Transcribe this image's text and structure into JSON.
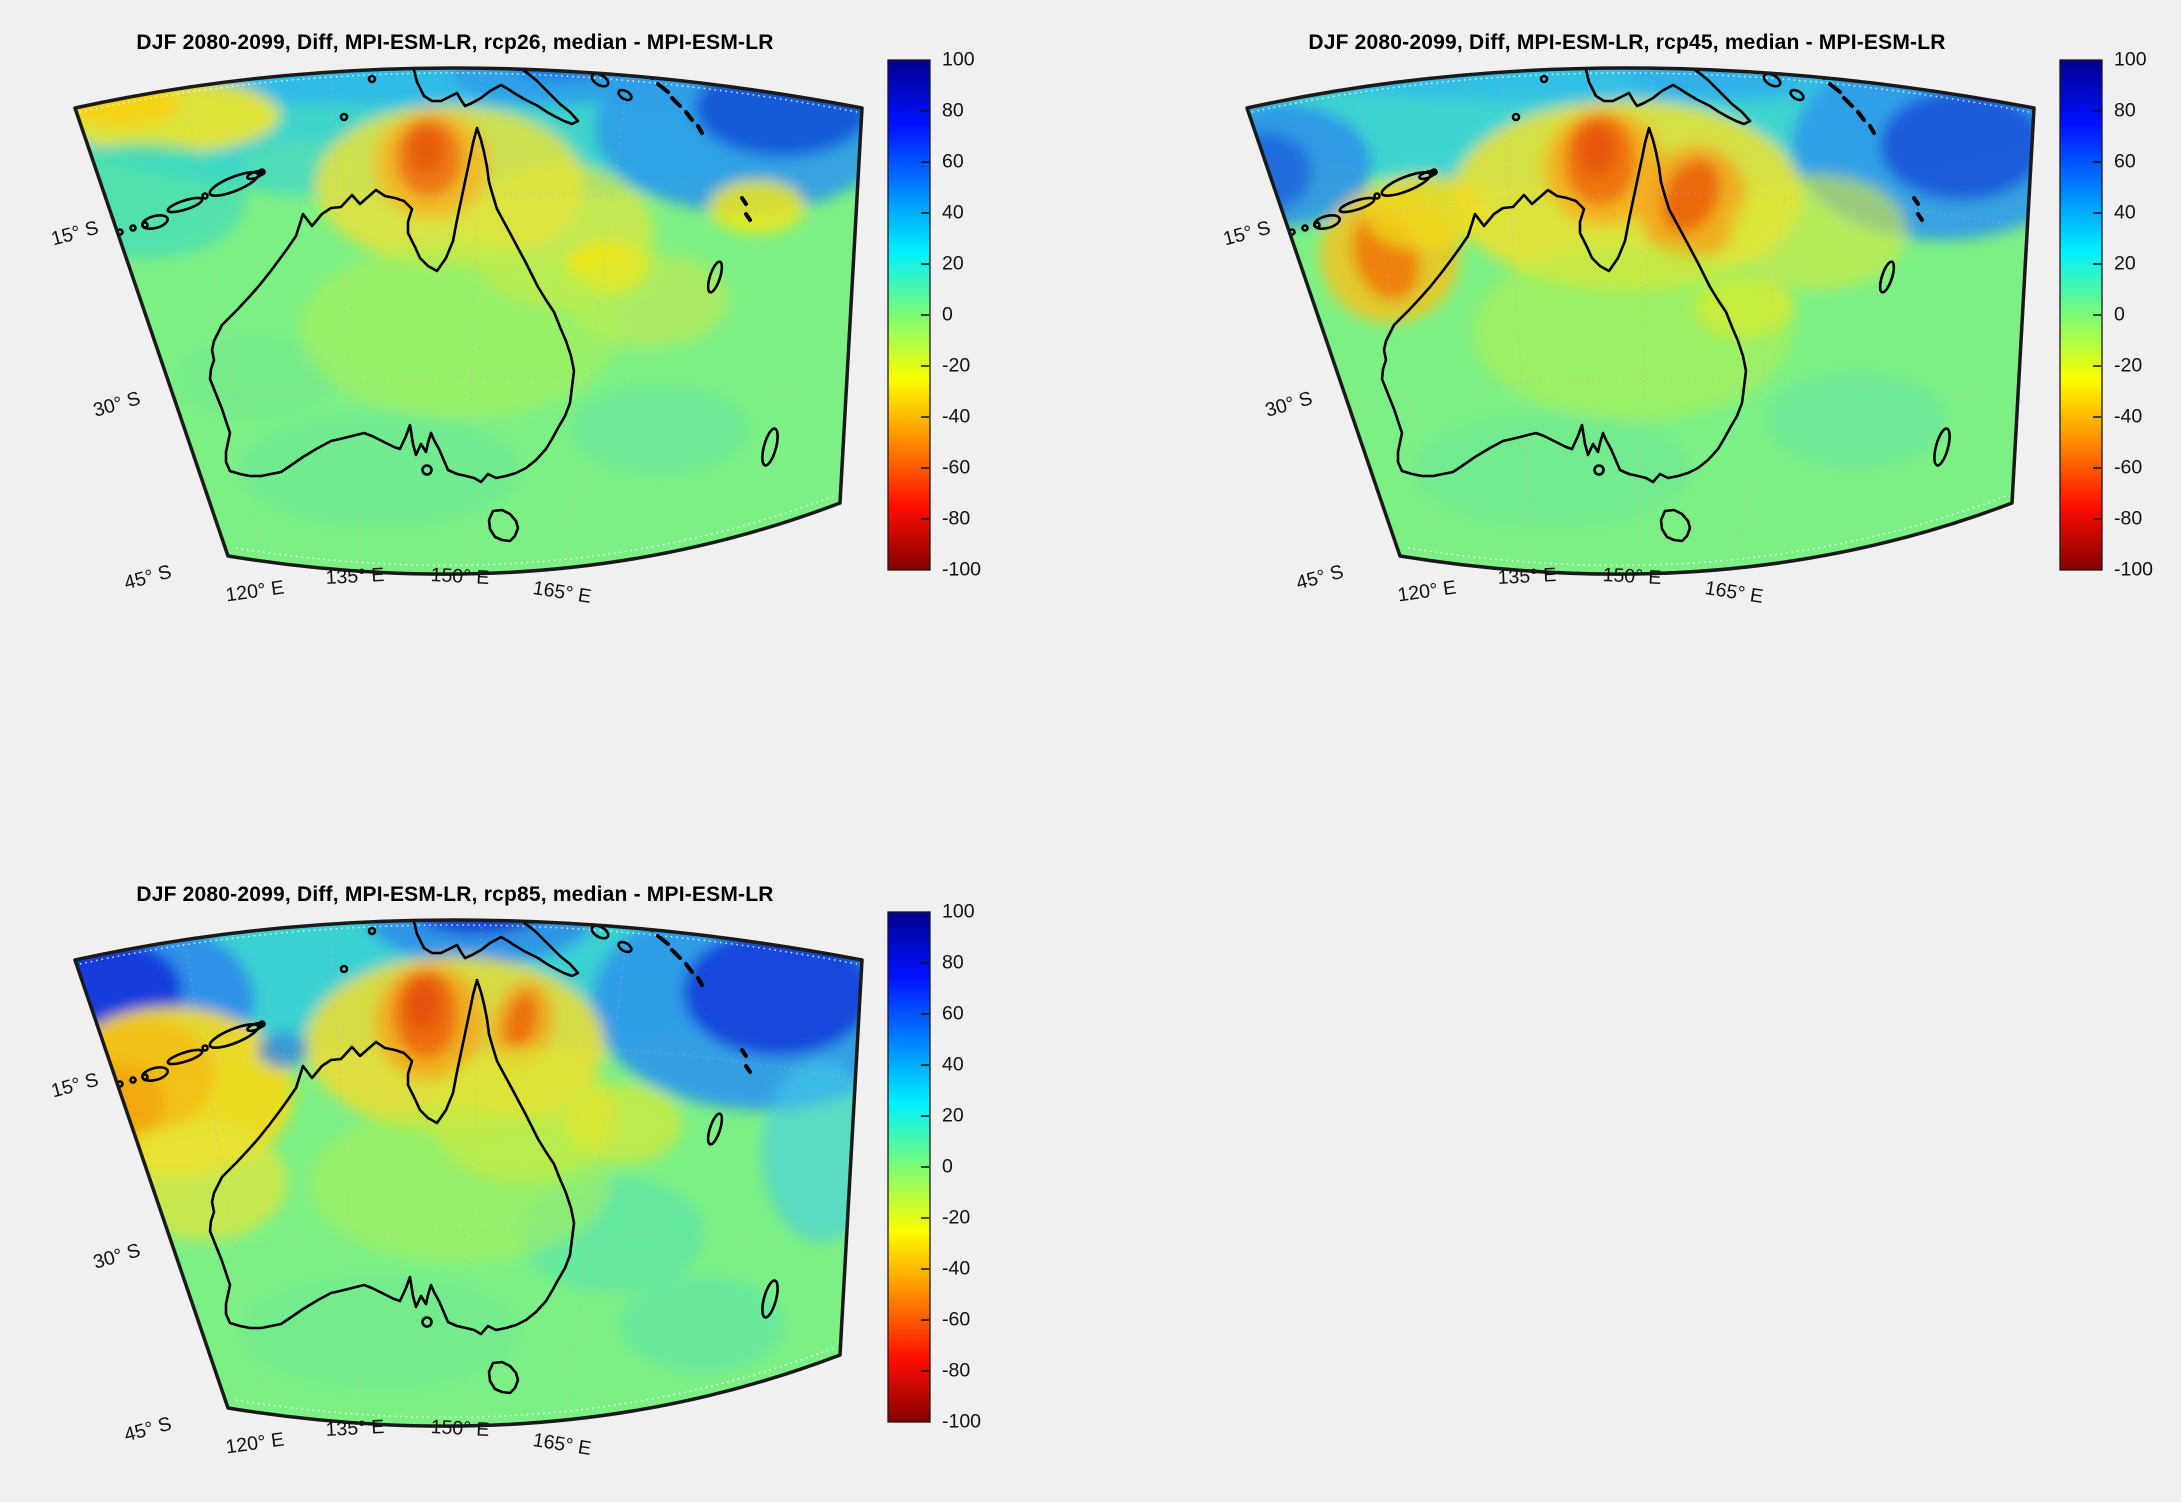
{
  "figure": {
    "background": "#F0F0F0",
    "kind": "MATLAB-style multi-panel climate map figure"
  },
  "chart_data": {
    "type": "heatmap",
    "description": "Three filled-contour map panels over the Australia region showing DJF 2080-2099 median difference fields for MPI-ESM-LR under rcp26, rcp45 and rcp85, each with a vertical jet colorbar from -100 to 100. Positive (blue) band across the tropics at top, negative (yellow/orange) anomalies over northern Australia.",
    "lat_ticks": [
      "15° S",
      "30° S",
      "45° S"
    ],
    "lon_ticks": [
      "120° E",
      "135° E",
      "150° E",
      "165° E"
    ],
    "colorbar": {
      "ticks": [
        "100",
        "80",
        "60",
        "40",
        "20",
        "0",
        "-20",
        "-40",
        "-60",
        "-80",
        "-100"
      ],
      "max": 100,
      "min": -100,
      "colormap": "jet reversed (+100 dark blue at top, 0 green, -100 dark red at bottom)",
      "stops": [
        [
          0,
          "#00008F"
        ],
        [
          0.125,
          "#0010FF"
        ],
        [
          0.25,
          "#0080FF"
        ],
        [
          0.375,
          "#00F0FF"
        ],
        [
          0.5,
          "#7CFC74"
        ],
        [
          0.625,
          "#FBFF00"
        ],
        [
          0.75,
          "#FF8A00"
        ],
        [
          0.875,
          "#FF0E00"
        ],
        [
          1,
          "#840000"
        ]
      ]
    },
    "features_format": "[cx, cy, rx, ry, color, opacity, rotationDeg(optional)] in panel pixel coords; color encodes field value per colorbar",
    "panels": [
      {
        "scenario": "rcp26",
        "title": "DJF 2080-2099, Diff, MPI-ESM-LR, rcp26, median - MPI-ESM-LR",
        "base_color": "#7DF085",
        "features": [
          [
            460,
            108,
            430,
            92,
            "#38D3CF",
            0.95
          ],
          [
            460,
            66,
            450,
            40,
            "#2FB9E9",
            0.9
          ],
          [
            745,
            128,
            150,
            85,
            "#2F9BE8",
            0.9
          ],
          [
            783,
            108,
            88,
            48,
            "#1256D8",
            0.95
          ],
          [
            545,
            70,
            95,
            36,
            "#2F9BE8",
            0.8
          ],
          [
            560,
            58,
            55,
            20,
            "#1B62DC",
            0.8
          ],
          [
            165,
            115,
            115,
            38,
            "#EDE42A",
            0.9
          ],
          [
            122,
            103,
            58,
            24,
            "#F6D214",
            0.9
          ],
          [
            145,
            200,
            100,
            58,
            "#3FDCBC",
            0.7
          ],
          [
            300,
            170,
            60,
            30,
            "#5FE3A8",
            0.5
          ],
          [
            450,
            185,
            135,
            80,
            "#E6E23B",
            0.85
          ],
          [
            432,
            165,
            58,
            54,
            "#F4B822",
            0.85
          ],
          [
            429,
            158,
            34,
            40,
            "#EE7511",
            0.95
          ],
          [
            426,
            150,
            18,
            24,
            "#E55A0B",
            0.95
          ],
          [
            560,
            235,
            95,
            72,
            "#E0E53C",
            0.7
          ],
          [
            608,
            268,
            42,
            26,
            "#F4E607",
            0.9
          ],
          [
            757,
            207,
            48,
            27,
            "#EFE61A",
            0.85
          ],
          [
            648,
            300,
            80,
            48,
            "#CDEA48",
            0.55
          ],
          [
            380,
            470,
            140,
            58,
            "#67E899",
            0.55
          ],
          [
            660,
            430,
            90,
            45,
            "#5FE5A6",
            0.5
          ],
          [
            255,
            378,
            80,
            44,
            "#72E78F",
            0.5
          ],
          [
            460,
            330,
            160,
            88,
            "#ADF052",
            0.55
          ]
        ]
      },
      {
        "scenario": "rcp45",
        "title": "DJF 2080-2099, Diff, MPI-ESM-LR, rcp45, median - MPI-ESM-LR",
        "base_color": "#7DF085",
        "features": [
          [
            460,
            105,
            430,
            88,
            "#38D3D4",
            0.95
          ],
          [
            465,
            64,
            445,
            38,
            "#2FBCE9",
            0.85
          ],
          [
            770,
            145,
            150,
            95,
            "#2F9BE8",
            0.92
          ],
          [
            790,
            145,
            82,
            55,
            "#1A58DB",
            0.95
          ],
          [
            108,
            165,
            92,
            62,
            "#2F93E8",
            0.9
          ],
          [
            88,
            172,
            52,
            40,
            "#1E68DE",
            0.9
          ],
          [
            545,
            66,
            90,
            34,
            "#32ACE9",
            0.8
          ],
          [
            455,
            195,
            175,
            95,
            "#E7E134",
            0.9
          ],
          [
            432,
            168,
            60,
            58,
            "#F4B120",
            0.9
          ],
          [
            428,
            160,
            36,
            46,
            "#EE7210",
            0.95
          ],
          [
            425,
            150,
            20,
            28,
            "#E5570A",
            0.9
          ],
          [
            521,
            203,
            52,
            58,
            "#F2A41D",
            0.88,
            25
          ],
          [
            519,
            196,
            26,
            38,
            "#EA630C",
            0.95,
            25
          ],
          [
            218,
            255,
            70,
            68,
            "#F2C41E",
            0.85
          ],
          [
            214,
            256,
            32,
            46,
            "#EE7F11",
            0.95,
            -20
          ],
          [
            252,
            212,
            60,
            38,
            "#F0DA1C",
            0.8
          ],
          [
            572,
            308,
            50,
            30,
            "#F0E61A",
            0.8
          ],
          [
            645,
            232,
            90,
            58,
            "#DAE73B",
            0.6
          ],
          [
            380,
            470,
            140,
            58,
            "#67E899",
            0.5
          ],
          [
            685,
            420,
            90,
            48,
            "#5FE5A6",
            0.5
          ],
          [
            460,
            332,
            160,
            88,
            "#B2F04A",
            0.55
          ]
        ]
      },
      {
        "scenario": "rcp85",
        "title": "DJF 2080-2099, Diff, MPI-ESM-LR, rcp85, median - MPI-ESM-LR",
        "base_color": "#7DF085",
        "features": [
          [
            460,
            103,
            430,
            92,
            "#36D0D6",
            0.95
          ],
          [
            132,
            148,
            122,
            82,
            "#2F8FE8",
            0.95
          ],
          [
            112,
            138,
            70,
            50,
            "#1138DA",
            0.95
          ],
          [
            480,
            68,
            112,
            44,
            "#2F8FE8",
            0.9
          ],
          [
            478,
            56,
            66,
            26,
            "#1132CC",
            0.9
          ],
          [
            762,
            150,
            170,
            108,
            "#2F9BE8",
            0.95
          ],
          [
            778,
            140,
            95,
            64,
            "#1543DA",
            0.95
          ],
          [
            822,
            300,
            60,
            90,
            "#44CDE9",
            0.6
          ],
          [
            455,
            192,
            150,
            88,
            "#E7DD36",
            0.9
          ],
          [
            430,
            170,
            55,
            58,
            "#F2AC1D",
            0.9
          ],
          [
            426,
            162,
            32,
            44,
            "#EC680E",
            0.95
          ],
          [
            423,
            153,
            17,
            26,
            "#E25108",
            0.9
          ],
          [
            522,
            174,
            30,
            46,
            "#F2A41D",
            0.85,
            15
          ],
          [
            521,
            170,
            15,
            30,
            "#EA680C",
            0.9,
            15
          ],
          [
            172,
            240,
            122,
            85,
            "#F0DA20",
            0.95
          ],
          [
            142,
            224,
            72,
            55,
            "#F4BE12",
            0.9
          ],
          [
            122,
            250,
            42,
            36,
            "#F1A511",
            0.85
          ],
          [
            205,
            330,
            82,
            58,
            "#E6E437",
            0.7
          ],
          [
            283,
            198,
            25,
            18,
            "#2F89E2",
            0.85
          ],
          [
            522,
            262,
            92,
            68,
            "#DEE634",
            0.7
          ],
          [
            622,
            272,
            60,
            40,
            "#E8E628",
            0.6
          ],
          [
            612,
            382,
            92,
            58,
            "#55E2B0",
            0.6
          ],
          [
            702,
            472,
            82,
            48,
            "#58E3AE",
            0.55
          ],
          [
            380,
            480,
            140,
            58,
            "#6BE996",
            0.5
          ],
          [
            460,
            332,
            150,
            78,
            "#AFF04E",
            0.5
          ]
        ]
      }
    ]
  }
}
